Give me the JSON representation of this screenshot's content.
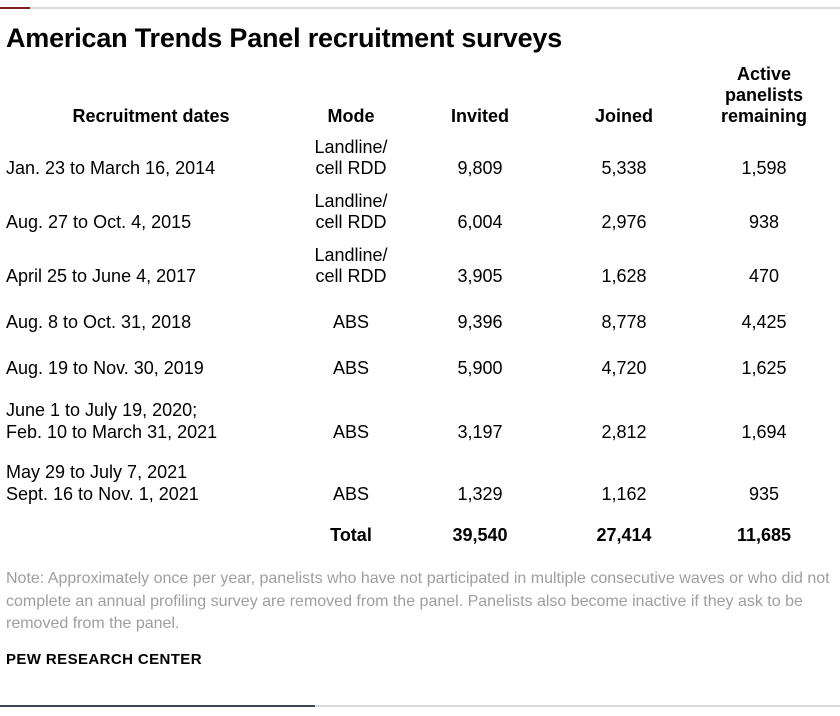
{
  "title": "American Trends Panel recruitment surveys",
  "colors": {
    "rule_gray": "#d9d9d9",
    "top_rule_accent": "#7d241e",
    "bottom_rule_accent": "#3a4652",
    "note_gray": "#9e9e9e",
    "text_black": "#000000"
  },
  "table": {
    "headers": [
      "Recruitment dates",
      "Mode",
      "Invited",
      "Joined",
      "Active\npanelists\nremaining"
    ],
    "rows": [
      {
        "dates": "Jan. 23 to March 16, 2014",
        "mode": "Landline/\ncell RDD",
        "invited": "9,809",
        "joined": "5,338",
        "remaining": "1,598"
      },
      {
        "dates": "Aug. 27 to Oct. 4, 2015",
        "mode": "Landline/\ncell RDD",
        "invited": "6,004",
        "joined": "2,976",
        "remaining": "938"
      },
      {
        "dates": "April 25 to June 4, 2017",
        "mode": "Landline/\ncell RDD",
        "invited": "3,905",
        "joined": "1,628",
        "remaining": "470"
      },
      {
        "dates": "Aug. 8 to Oct. 31, 2018",
        "mode": "ABS",
        "invited": "9,396",
        "joined": "8,778",
        "remaining": "4,425"
      },
      {
        "dates": "Aug. 19 to Nov. 30, 2019",
        "mode": "ABS",
        "invited": "5,900",
        "joined": "4,720",
        "remaining": "1,625"
      },
      {
        "dates": "June 1 to July 19, 2020;\nFeb. 10 to March 31, 2021",
        "mode": "ABS",
        "invited": "3,197",
        "joined": "2,812",
        "remaining": "1,694"
      },
      {
        "dates": "May 29 to July 7, 2021\nSept. 16 to Nov. 1, 2021",
        "mode": "ABS",
        "invited": "1,329",
        "joined": "1,162",
        "remaining": "935"
      }
    ],
    "total_row": {
      "label": "Total",
      "invited": "39,540",
      "joined": "27,414",
      "remaining": "11,685"
    }
  },
  "note": {
    "text": "Note: Approximately once per year, panelists who have not participated in multiple consecutive waves or who did not complete an annual profiling survey are removed from the panel. Panelists also become inactive if they ask to be removed from the panel."
  },
  "footer": {
    "source": "PEW RESEARCH CENTER"
  },
  "chart_data": {
    "type": "table",
    "title": "American Trends Panel recruitment surveys",
    "columns": [
      "Recruitment dates",
      "Mode",
      "Invited",
      "Joined",
      "Active panelists remaining"
    ],
    "rows": [
      [
        "Jan. 23 to March 16, 2014",
        "Landline/cell RDD",
        9809,
        5338,
        1598
      ],
      [
        "Aug. 27 to Oct. 4, 2015",
        "Landline/cell RDD",
        6004,
        2976,
        938
      ],
      [
        "April 25 to June 4, 2017",
        "Landline/cell RDD",
        3905,
        1628,
        470
      ],
      [
        "Aug. 8 to Oct. 31, 2018",
        "ABS",
        9396,
        8778,
        4425
      ],
      [
        "Aug. 19 to Nov. 30, 2019",
        "ABS",
        5900,
        4720,
        1625
      ],
      [
        "June 1 to July 19, 2020; Feb. 10 to March 31, 2021",
        "ABS",
        3197,
        2812,
        1694
      ],
      [
        "May 29 to July 7, 2021; Sept. 16 to Nov. 1, 2021",
        "ABS",
        1329,
        1162,
        935
      ]
    ],
    "total": {
      "label": "Total",
      "invited": 39540,
      "joined": 27414,
      "remaining": 11685
    },
    "note": "Approximately once per year, panelists who have not participated in multiple consecutive waves or who did not complete an annual profiling survey are removed from the panel. Panelists also become inactive if they ask to be removed from the panel.",
    "source": "PEW RESEARCH CENTER"
  }
}
